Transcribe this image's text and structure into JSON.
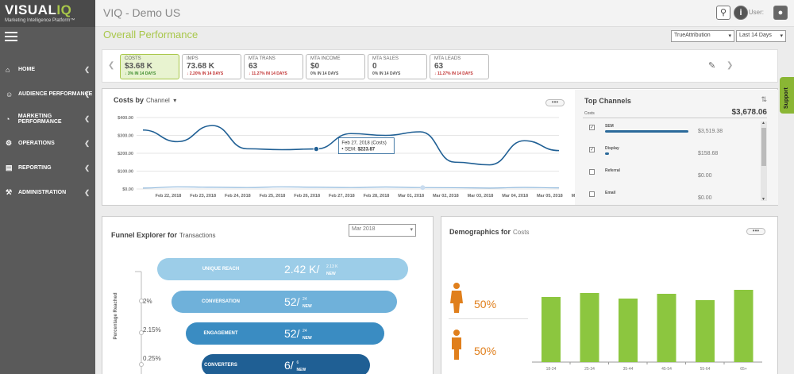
{
  "logo": {
    "main_a": "VISUAL",
    "main_b": "IQ",
    "sub": "Marketing Intelligence Platform™"
  },
  "sidebar": {
    "items": [
      {
        "label": "HOME",
        "icon": "home-icon",
        "glyph": "⌂"
      },
      {
        "label": "AUDIENCE PERFORMANCE",
        "icon": "users-icon",
        "glyph": "☺"
      },
      {
        "label": "MARKETING PERFORMANCE",
        "icon": "gauge-icon",
        "glyph": "◔"
      },
      {
        "label": "OPERATIONS",
        "icon": "gears-icon",
        "glyph": "⚙"
      },
      {
        "label": "REPORTING",
        "icon": "report-icon",
        "glyph": "▤"
      },
      {
        "label": "ADMINISTRATION",
        "icon": "wrench-icon",
        "glyph": "⚒"
      }
    ]
  },
  "header": {
    "title": "VIQ - Demo US",
    "user_label": "User:"
  },
  "page": {
    "title": "Overall Performance"
  },
  "filters": {
    "attribution": "TrueAttribution",
    "range": "Last 14 Days"
  },
  "kpis": [
    {
      "label": "COSTS",
      "value": "$3.68 K",
      "change": "3%  IN 14 DAYS",
      "dir": "up",
      "arrow": "↓"
    },
    {
      "label": "IMPS",
      "value": "73.68 K",
      "change": "2.20% IN 14 DAYS",
      "dir": "down",
      "arrow": "↓"
    },
    {
      "label": "MTA TRANS",
      "value": "63",
      "change": "11.27% IN 14 DAYS",
      "dir": "down",
      "arrow": "↓"
    },
    {
      "label": "MTA INCOME",
      "value": "$0",
      "change": "0%  IN 14 DAYS",
      "dir": "none",
      "arrow": ""
    },
    {
      "label": "MTA SALES",
      "value": "0",
      "change": "0%  IN 14 DAYS",
      "dir": "none",
      "arrow": ""
    },
    {
      "label": "MTA LEADS",
      "value": "63",
      "change": "11.27% IN 14 DAYS",
      "dir": "down",
      "arrow": "↓"
    }
  ],
  "costs_chart": {
    "title": "Costs by",
    "dimension": "Channel",
    "tooltip": {
      "date": "Feb 27, 2018 (Costs)",
      "series": "SEM:",
      "value": "$223.87"
    }
  },
  "chart_data": {
    "type": "line",
    "x": [
      "Feb 22, 2018",
      "Feb 23, 2018",
      "Feb 24, 2018",
      "Feb 25, 2018",
      "Feb 26, 2018",
      "Feb 27, 2018",
      "Feb 28, 2018",
      "Mar 01, 2018",
      "Mar 02, 2018",
      "Mar 03, 2018",
      "Mar 04, 2018",
      "Mar 05, 2018",
      "Mar 06, 2018"
    ],
    "y_ticks": [
      "$0.00",
      "$100.00",
      "$200.00",
      "$300.00",
      "$400.00"
    ],
    "ylim": [
      0,
      400
    ],
    "series": [
      {
        "values": [
          330,
          265,
          355,
          225,
          220,
          224,
          310,
          300,
          320,
          150,
          135,
          270,
          215
        ],
        "color": "#1f5f94"
      },
      {
        "values": [
          5,
          12,
          10,
          8,
          12,
          10,
          8,
          11,
          8,
          7,
          5,
          9,
          6
        ],
        "color": "#8fb8dc"
      }
    ]
  },
  "top_channels": {
    "title": "Top Channels",
    "metric_label": "Costs",
    "total": "$3,678.06",
    "rows": [
      {
        "name": "SEM",
        "value": "$3,519.38",
        "checked": true,
        "share": 0.957
      },
      {
        "name": "Display",
        "value": "$158.68",
        "checked": true,
        "share": 0.043
      },
      {
        "name": "Referral",
        "value": "$0.00",
        "checked": false,
        "share": 0
      },
      {
        "name": "Email",
        "value": "$0.00",
        "checked": false,
        "share": 0
      }
    ]
  },
  "funnel": {
    "title": "Funnel Explorer for",
    "metric": "Transactions",
    "period": "Mar 2018",
    "axis_label": "Percentage Reached",
    "stages": [
      {
        "label": "UNIQUE REACH",
        "value": "2.42 K",
        "sup": "2.13 K",
        "new": "NEW",
        "color": "#9ccde8"
      },
      {
        "label": "CONVERSATION",
        "value": "52",
        "sup": "24",
        "new": "NEW",
        "color": "#6fb1da"
      },
      {
        "label": "ENGAGEMENT",
        "value": "52",
        "sup": "24",
        "new": "NEW",
        "color": "#3a8cc2"
      },
      {
        "label": "CONVERTERS",
        "value": "6",
        "sup": "6",
        "new": "NEW",
        "color": "#1f5f94"
      }
    ],
    "percents": [
      "2%",
      "2.15%",
      "0.25%"
    ]
  },
  "demographics": {
    "title": "Demographics for",
    "metric": "Costs",
    "female_pct": "50%",
    "male_pct": "50%",
    "bar_color": "#8cc63f",
    "categories": [
      "18-24",
      "25-34",
      "35-44",
      "45-54",
      "55-64",
      "65+"
    ],
    "values": [
      82,
      87,
      80,
      86,
      78,
      91
    ]
  },
  "support": {
    "label": "Support"
  }
}
